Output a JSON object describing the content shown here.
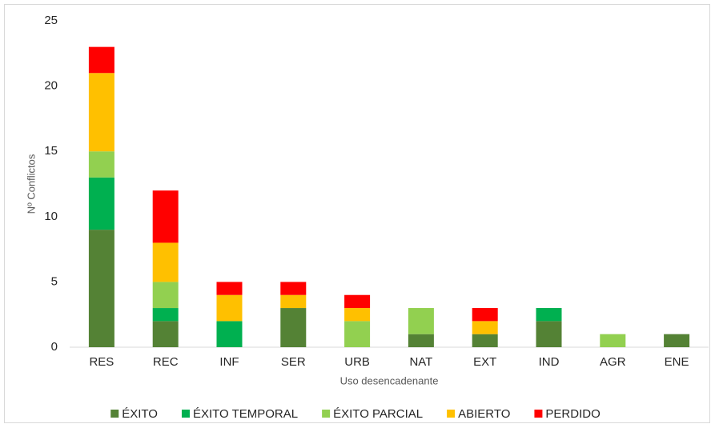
{
  "chart_data": {
    "type": "stacked_bar",
    "xlabel": "Uso desencadenante",
    "ylabel": "Nº Conflictos",
    "categories": [
      "RES",
      "REC",
      "INF",
      "SER",
      "URB",
      "NAT",
      "EXT",
      "IND",
      "AGR",
      "ENE"
    ],
    "series": [
      {
        "name": "ÉXITO",
        "color": "#548235",
        "values": [
          9,
          2,
          0,
          3,
          0,
          1,
          1,
          2,
          0,
          1
        ]
      },
      {
        "name": "ÉXITO TEMPORAL",
        "color": "#00b050",
        "values": [
          4,
          1,
          2,
          0,
          0,
          0,
          0,
          1,
          0,
          0
        ]
      },
      {
        "name": "ÉXITO PARCIAL",
        "color": "#92d050",
        "values": [
          2,
          2,
          0,
          0,
          2,
          2,
          0,
          0,
          1,
          0
        ]
      },
      {
        "name": "ABIERTO",
        "color": "#ffc000",
        "values": [
          6,
          3,
          2,
          1,
          1,
          0,
          1,
          0,
          0,
          0
        ]
      },
      {
        "name": "PERDIDO",
        "color": "#ff0000",
        "values": [
          2,
          4,
          1,
          1,
          1,
          0,
          1,
          0,
          0,
          0
        ]
      }
    ],
    "ylim": [
      0,
      25
    ],
    "yticks": [
      0,
      5,
      10,
      15,
      20,
      25
    ],
    "grid": false,
    "legend": "bottom"
  }
}
